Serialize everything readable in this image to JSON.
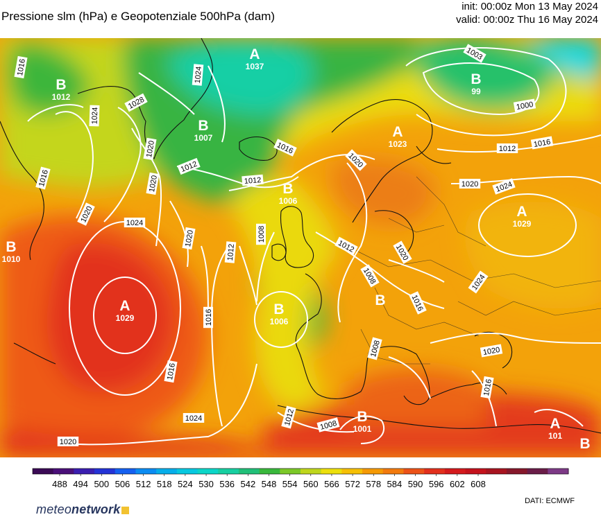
{
  "header": {
    "title": "Pressione slm (hPa) e Geopotenziale 500hPa (dam)",
    "init": "init: 00:00z Mon 13 May 2024",
    "valid": "valid: 00:00z Thu 16 May 2024"
  },
  "pressure_centers": [
    {
      "letter": "B",
      "value": "1012"
    },
    {
      "letter": "A",
      "value": "1037"
    },
    {
      "letter": "B",
      "value": "1007"
    },
    {
      "letter": "B",
      "value": "99"
    },
    {
      "letter": "A",
      "value": "1023"
    },
    {
      "letter": "B",
      "value": "1006"
    },
    {
      "letter": "B",
      "value": "1010"
    },
    {
      "letter": "A",
      "value": "1029"
    },
    {
      "letter": "B",
      "value": "1006"
    },
    {
      "letter": "B",
      "value": ""
    },
    {
      "letter": "A",
      "value": "1029"
    },
    {
      "letter": "B",
      "value": "1001"
    },
    {
      "letter": "A",
      "value": "101"
    },
    {
      "letter": "B",
      "value": ""
    }
  ],
  "isobar_labels": [
    "1016",
    "1024",
    "1028",
    "1024",
    "1016",
    "1012",
    "1012",
    "1020",
    "1003",
    "1000",
    "1012",
    "1016",
    "1020",
    "1024",
    "1016",
    "1020",
    "1020",
    "1024",
    "1020",
    "1012",
    "1008",
    "1012",
    "1020",
    "1008",
    "1016",
    "1024",
    "1016",
    "1008",
    "1020",
    "1016",
    "1016",
    "1024",
    "1020",
    "1012",
    "1008",
    "1020"
  ],
  "colorbar": {
    "ticks": [
      "488",
      "494",
      "500",
      "506",
      "512",
      "518",
      "524",
      "530",
      "536",
      "542",
      "548",
      "554",
      "560",
      "566",
      "572",
      "578",
      "584",
      "590",
      "596",
      "602",
      "608"
    ],
    "colors": [
      "#3b0a55",
      "#4a0f79",
      "#3a1eb0",
      "#2433d6",
      "#1560f0",
      "#0b8cf2",
      "#06aeea",
      "#07c8e0",
      "#0cd6c8",
      "#17cfa1",
      "#21c079",
      "#39b83c",
      "#7cc828",
      "#bfd61c",
      "#ecdf0c",
      "#f6c005",
      "#f59a05",
      "#f27a0e",
      "#ec5218",
      "#e2301d",
      "#d41a1d",
      "#c4121c",
      "#a81420",
      "#86182b",
      "#6a1d48",
      "#7d3a86"
    ]
  },
  "branding": {
    "logo_normal": "meteo",
    "logo_bold": "network",
    "credit": "DATI:  ECMWF"
  }
}
